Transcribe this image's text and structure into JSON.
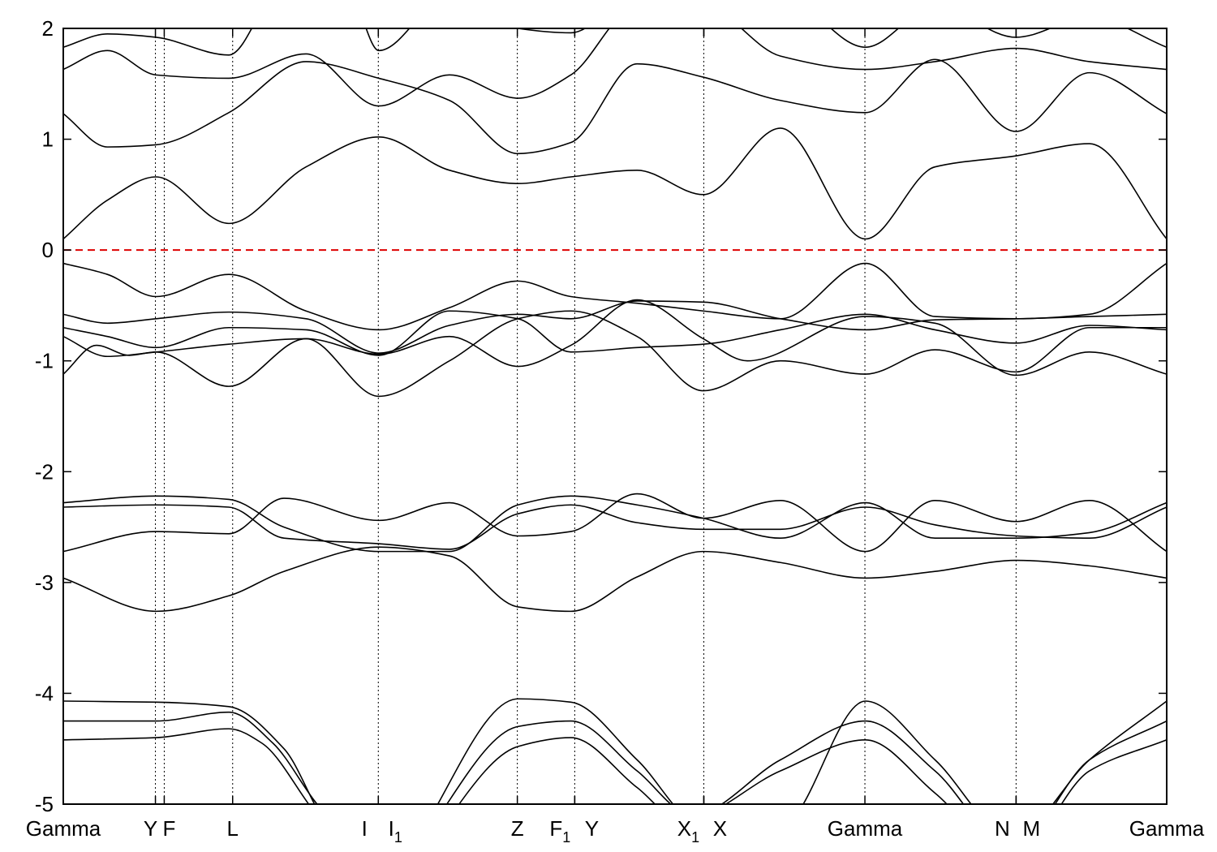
{
  "chart_data": {
    "type": "line",
    "title": "",
    "xlabel": "",
    "ylabel": "",
    "xlim": [
      0,
      1
    ],
    "ylim": [
      -5,
      2
    ],
    "yticks": [
      "2",
      "1",
      "0",
      "-1",
      "-2",
      "-3",
      "-4",
      "-5"
    ],
    "ytick_values": [
      2,
      1,
      0,
      -1,
      -2,
      -3,
      -4,
      -5
    ],
    "fermi_level": {
      "value": 0,
      "color": "#dd0000",
      "style": "dashed"
    },
    "grid": false,
    "line_color": "#000000",
    "kpoints": [
      {
        "name": "gamma-0",
        "parts": [
          {
            "t": "Gamma"
          }
        ],
        "x": 0.0
      },
      {
        "name": "y",
        "parts": [
          {
            "t": "Y"
          }
        ],
        "x": 0.0835
      },
      {
        "name": "f",
        "parts": [
          {
            "t": "F"
          }
        ],
        "x": 0.0915
      },
      {
        "name": "l",
        "parts": [
          {
            "t": "L"
          }
        ],
        "x": 0.1535
      },
      {
        "name": "i",
        "parts": [
          {
            "t": "I"
          }
        ],
        "x": 0.2855
      },
      {
        "name": "i1",
        "parts": [
          {
            "t": "I"
          },
          {
            "t": "1",
            "sub": true
          }
        ],
        "x": 0.2855
      },
      {
        "name": "z",
        "parts": [
          {
            "t": "Z"
          }
        ],
        "x": 0.4115
      },
      {
        "name": "f1",
        "parts": [
          {
            "t": "F"
          },
          {
            "t": "1",
            "sub": true
          }
        ],
        "x": 0.4635
      },
      {
        "name": "y2",
        "parts": [
          {
            "t": "Y"
          }
        ],
        "x": 0.4635
      },
      {
        "name": "x1",
        "parts": [
          {
            "t": "X"
          },
          {
            "t": "1",
            "sub": true
          }
        ],
        "x": 0.5805
      },
      {
        "name": "x",
        "parts": [
          {
            "t": "X"
          }
        ],
        "x": 0.5805
      },
      {
        "name": "gamma-1",
        "parts": [
          {
            "t": "Gamma"
          }
        ],
        "x": 0.7265
      },
      {
        "name": "n",
        "parts": [
          {
            "t": "N"
          }
        ],
        "x": 0.8635
      },
      {
        "name": "m",
        "parts": [
          {
            "t": "M"
          }
        ],
        "x": 0.8635
      },
      {
        "name": "gamma-2",
        "parts": [
          {
            "t": "Gamma"
          }
        ],
        "x": 1.0
      }
    ],
    "label_offsets": {
      "i": -17,
      "i1": 21,
      "f1": -18,
      "y2": 21,
      "x1": -19,
      "x": 20,
      "n": -17,
      "m": 19,
      "y": -6,
      "f": 6
    },
    "series": [
      {
        "x": [
          0,
          0.04,
          0.084,
          0.15,
          0.22,
          0.286,
          0.35,
          0.412,
          0.46,
          0.52,
          0.58,
          0.65,
          0.727,
          0.79,
          0.8635,
          0.93,
          1.0
        ],
        "y": [
          -0.12,
          -0.22,
          -0.42,
          -0.22,
          -0.55,
          -0.72,
          -0.52,
          -0.28,
          -0.42,
          -0.48,
          -0.55,
          -0.62,
          -0.12,
          -0.6,
          -0.62,
          -0.58,
          -0.12
        ]
      },
      {
        "x": [
          0,
          0.04,
          0.084,
          0.15,
          0.22,
          0.286,
          0.35,
          0.412,
          0.46,
          0.52,
          0.58,
          0.65,
          0.727,
          0.79,
          0.8635,
          0.93,
          1.0
        ],
        "y": [
          -0.58,
          -0.66,
          -0.62,
          -0.56,
          -0.62,
          -0.93,
          -0.68,
          -0.58,
          -0.62,
          -0.46,
          -0.47,
          -0.62,
          -0.72,
          -0.63,
          -0.62,
          -0.6,
          -0.58
        ]
      },
      {
        "x": [
          0,
          0.04,
          0.084,
          0.15,
          0.22,
          0.286,
          0.35,
          0.412,
          0.46,
          0.52,
          0.58,
          0.65,
          0.727,
          0.79,
          0.8635,
          0.93,
          1.0
        ],
        "y": [
          -0.7,
          -0.78,
          -0.88,
          -0.7,
          -0.72,
          -0.95,
          -0.55,
          -0.62,
          -0.92,
          -0.88,
          -0.85,
          -0.72,
          -0.58,
          -0.72,
          -0.84,
          -0.68,
          -0.72
        ]
      },
      {
        "x": [
          0,
          0.03,
          0.06,
          0.084,
          0.15,
          0.22,
          0.286,
          0.35,
          0.412,
          0.46,
          0.52,
          0.58,
          0.62,
          0.727,
          0.79,
          0.8635,
          0.93,
          1.0
        ],
        "y": [
          -1.12,
          -0.86,
          -0.95,
          -0.92,
          -1.23,
          -0.8,
          -0.94,
          -0.78,
          -1.05,
          -0.86,
          -0.45,
          -0.8,
          -1.0,
          -0.6,
          -0.66,
          -1.13,
          -0.92,
          -1.12
        ]
      },
      {
        "x": [
          0,
          0.04,
          0.084,
          0.15,
          0.22,
          0.286,
          0.35,
          0.412,
          0.46,
          0.52,
          0.58,
          0.65,
          0.727,
          0.79,
          0.8635,
          0.93,
          1.0
        ],
        "y": [
          -0.78,
          -0.96,
          -0.92,
          -0.85,
          -0.8,
          -1.32,
          -1.0,
          -0.62,
          -0.55,
          -0.78,
          -1.27,
          -1.0,
          -1.12,
          -0.9,
          -1.1,
          -0.7,
          -0.7
        ]
      },
      {
        "x": [
          0,
          0.04,
          0.084,
          0.15,
          0.22,
          0.286,
          0.35,
          0.412,
          0.46,
          0.52,
          0.58,
          0.65,
          0.727,
          0.79,
          0.8635,
          0.93,
          1.0
        ],
        "y": [
          0.1,
          0.45,
          0.66,
          0.24,
          0.75,
          1.02,
          0.72,
          0.6,
          0.66,
          0.72,
          0.5,
          1.1,
          0.1,
          0.75,
          0.85,
          0.96,
          0.1
        ]
      },
      {
        "x": [
          0,
          0.04,
          0.084,
          0.15,
          0.22,
          0.286,
          0.35,
          0.412,
          0.46,
          0.52,
          0.58,
          0.65,
          0.727,
          0.79,
          0.8635,
          0.93,
          1.0
        ],
        "y": [
          1.23,
          0.93,
          0.95,
          1.24,
          1.7,
          1.55,
          1.35,
          0.87,
          0.97,
          1.68,
          1.56,
          1.35,
          1.24,
          1.72,
          1.07,
          1.6,
          1.23
        ]
      },
      {
        "x": [
          0,
          0.04,
          0.084,
          0.15,
          0.22,
          0.286,
          0.35,
          0.412,
          0.46,
          0.52,
          0.58,
          0.65,
          0.727,
          0.79,
          0.8635,
          0.93,
          1.0
        ],
        "y": [
          1.63,
          1.8,
          1.58,
          1.55,
          1.77,
          1.3,
          1.58,
          1.37,
          1.58,
          2.2,
          2.2,
          1.75,
          1.63,
          1.7,
          1.82,
          1.7,
          1.63
        ]
      },
      {
        "x": [
          0,
          0.04,
          0.084,
          0.15,
          0.2,
          0.26,
          0.286,
          0.35,
          0.412,
          0.46,
          0.52,
          0.58,
          0.65,
          0.727,
          0.79,
          0.8635,
          0.93,
          1.0
        ],
        "y": [
          1.83,
          1.95,
          1.92,
          1.76,
          2.4,
          2.3,
          1.8,
          2.3,
          2.0,
          1.96,
          2.3,
          2.3,
          2.3,
          1.83,
          2.2,
          1.92,
          2.1,
          1.83
        ]
      },
      {
        "x": [
          0,
          0.084,
          0.15,
          0.2,
          0.286,
          0.35,
          0.412,
          0.46,
          0.52,
          0.58,
          0.65,
          0.727,
          0.79,
          0.8635,
          0.93,
          1.0
        ],
        "y": [
          -2.28,
          -2.22,
          -2.25,
          -2.5,
          -2.72,
          -2.72,
          -2.3,
          -2.22,
          -2.3,
          -2.42,
          -2.6,
          -2.28,
          -2.6,
          -2.6,
          -2.55,
          -2.28
        ]
      },
      {
        "x": [
          0,
          0.084,
          0.15,
          0.2,
          0.286,
          0.35,
          0.412,
          0.46,
          0.52,
          0.58,
          0.65,
          0.727,
          0.79,
          0.8635,
          0.93,
          1.0
        ],
        "y": [
          -2.32,
          -2.3,
          -2.32,
          -2.6,
          -2.65,
          -2.7,
          -2.38,
          -2.3,
          -2.46,
          -2.52,
          -2.52,
          -2.32,
          -2.48,
          -2.58,
          -2.6,
          -2.32
        ]
      },
      {
        "x": [
          0,
          0.084,
          0.15,
          0.2,
          0.286,
          0.35,
          0.412,
          0.46,
          0.52,
          0.58,
          0.65,
          0.727,
          0.79,
          0.8635,
          0.93,
          1.0
        ],
        "y": [
          -2.72,
          -2.54,
          -2.56,
          -2.24,
          -2.44,
          -2.28,
          -2.58,
          -2.54,
          -2.2,
          -2.42,
          -2.26,
          -2.72,
          -2.26,
          -2.45,
          -2.26,
          -2.72
        ]
      },
      {
        "x": [
          0,
          0.084,
          0.15,
          0.2,
          0.286,
          0.35,
          0.412,
          0.46,
          0.52,
          0.58,
          0.65,
          0.727,
          0.79,
          0.8635,
          0.93,
          1.0
        ],
        "y": [
          -2.96,
          -3.26,
          -3.12,
          -2.9,
          -2.68,
          -2.76,
          -3.22,
          -3.26,
          -2.95,
          -2.72,
          -2.82,
          -2.96,
          -2.9,
          -2.8,
          -2.85,
          -2.96
        ]
      },
      {
        "x": [
          0,
          0.084,
          0.15,
          0.2,
          0.24,
          0.286,
          0.412,
          0.46,
          0.52,
          0.58,
          0.65,
          0.727,
          0.79,
          0.86,
          0.93,
          1.0
        ],
        "y": [
          -4.07,
          -4.08,
          -4.12,
          -4.5,
          -5.2,
          -5.6,
          -4.05,
          -4.08,
          -4.6,
          -5.2,
          -5.2,
          -4.07,
          -4.6,
          -5.3,
          -4.6,
          -4.07
        ]
      },
      {
        "x": [
          0,
          0.084,
          0.15,
          0.19,
          0.23,
          0.286,
          0.412,
          0.46,
          0.52,
          0.57,
          0.65,
          0.727,
          0.79,
          0.86,
          0.93,
          1.0
        ],
        "y": [
          -4.25,
          -4.25,
          -4.17,
          -4.45,
          -5.0,
          -5.6,
          -4.3,
          -4.25,
          -4.7,
          -5.1,
          -4.6,
          -4.25,
          -4.7,
          -5.4,
          -4.6,
          -4.25
        ]
      },
      {
        "x": [
          0,
          0.084,
          0.15,
          0.18,
          0.23,
          0.286,
          0.412,
          0.46,
          0.52,
          0.56,
          0.65,
          0.727,
          0.79,
          0.86,
          0.93,
          1.0
        ],
        "y": [
          -4.42,
          -4.4,
          -4.32,
          -4.45,
          -5.1,
          -5.7,
          -4.48,
          -4.4,
          -4.85,
          -5.15,
          -4.7,
          -4.42,
          -4.9,
          -5.5,
          -4.7,
          -4.42
        ]
      }
    ]
  }
}
